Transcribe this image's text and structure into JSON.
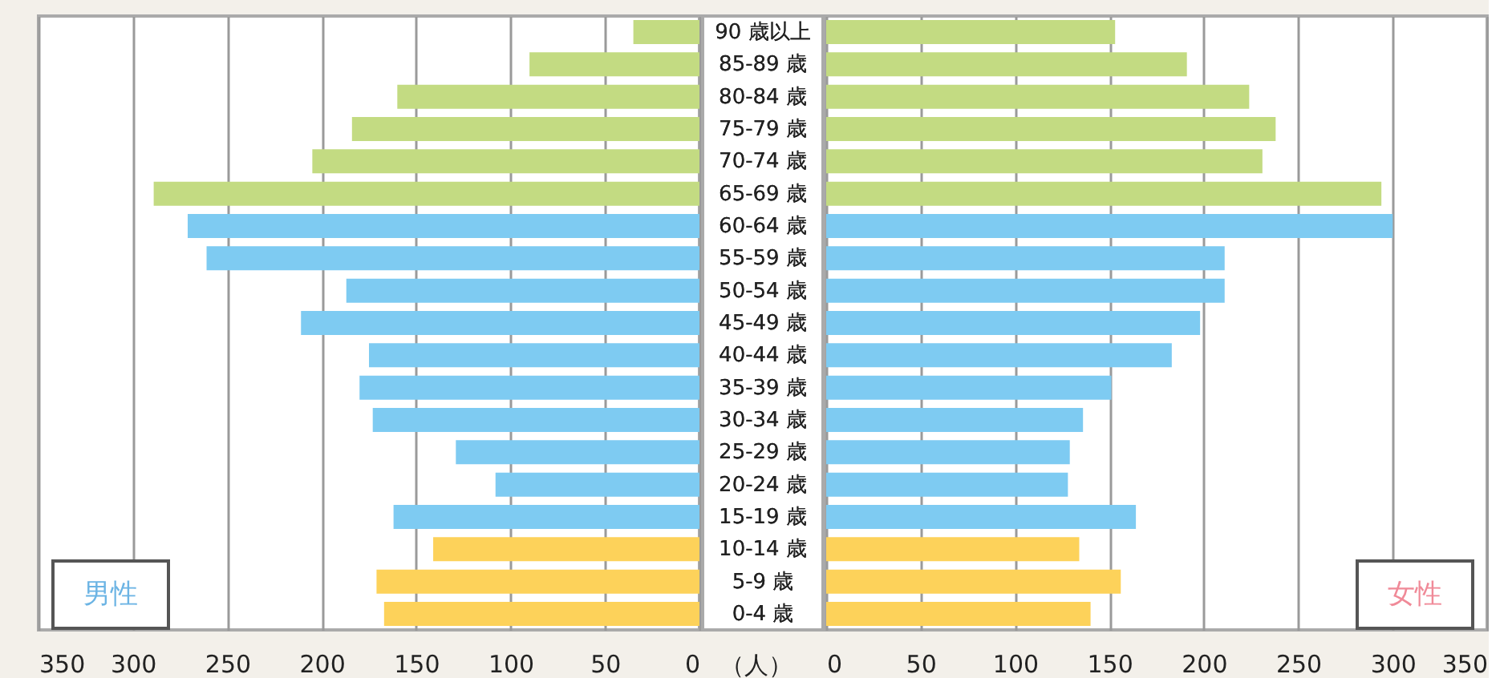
{
  "chart_data": [
    {
      "type": "bar",
      "orientation": "horizontal",
      "xlabel": "（人）",
      "categories": [
        "90 歳以上",
        "85-89 歳",
        "80-84 歳",
        "75-79 歳",
        "70-74 歳",
        "65-69 歳",
        "60-64 歳",
        "55-59 歳",
        "50-54 歳",
        "45-49 歳",
        "40-44 歳",
        "35-39 歳",
        "30-34 歳",
        "25-29 歳",
        "20-24 歳",
        "15-19 歳",
        "10-14 歳",
        "5-9 歳",
        "0-4 歳"
      ],
      "series": [
        {
          "name": "男性",
          "color": "#6cb4e4",
          "values": [
            35,
            90,
            160,
            184,
            205,
            289,
            271,
            261,
            187,
            211,
            175,
            180,
            173,
            129,
            108,
            162,
            141,
            171,
            167
          ],
          "colors": [
            "#c3db82",
            "#c3db82",
            "#c3db82",
            "#c3db82",
            "#c3db82",
            "#c3db82",
            "#7ecbf2",
            "#7ecbf2",
            "#7ecbf2",
            "#7ecbf2",
            "#7ecbf2",
            "#7ecbf2",
            "#7ecbf2",
            "#7ecbf2",
            "#7ecbf2",
            "#7ecbf2",
            "#fdd25a",
            "#fdd25a",
            "#fdd25a"
          ]
        }
      ],
      "xlim": [
        350,
        0
      ],
      "xticks": [
        350,
        300,
        250,
        200,
        150,
        100,
        50,
        0
      ],
      "grid": "x",
      "legend": "bottom left"
    },
    {
      "type": "bar",
      "orientation": "horizontal",
      "categories": [
        "90 歳以上",
        "85-89 歳",
        "80-84 歳",
        "75-79 歳",
        "70-74 歳",
        "65-69 歳",
        "60-64 歳",
        "55-59 歳",
        "50-54 歳",
        "45-49 歳",
        "40-44 歳",
        "35-39 歳",
        "30-34 歳",
        "25-29 歳",
        "20-24 歳",
        "15-19 歳",
        "10-14 歳",
        "5-9 歳",
        "0-4 歳"
      ],
      "series": [
        {
          "name": "女性",
          "color": "#f08a98",
          "values": [
            153,
            191,
            224,
            238,
            231,
            294,
            300,
            211,
            211,
            198,
            183,
            151,
            136,
            129,
            128,
            164,
            134,
            156,
            140
          ],
          "colors": [
            "#c3db82",
            "#c3db82",
            "#c3db82",
            "#c3db82",
            "#c3db82",
            "#c3db82",
            "#7ecbf2",
            "#7ecbf2",
            "#7ecbf2",
            "#7ecbf2",
            "#7ecbf2",
            "#7ecbf2",
            "#7ecbf2",
            "#7ecbf2",
            "#7ecbf2",
            "#7ecbf2",
            "#fdd25a",
            "#fdd25a",
            "#fdd25a"
          ]
        }
      ],
      "xlim": [
        0,
        350
      ],
      "xticks": [
        0,
        50,
        100,
        150,
        200,
        250,
        300,
        350
      ],
      "grid": "x",
      "legend": "bottom right"
    }
  ]
}
